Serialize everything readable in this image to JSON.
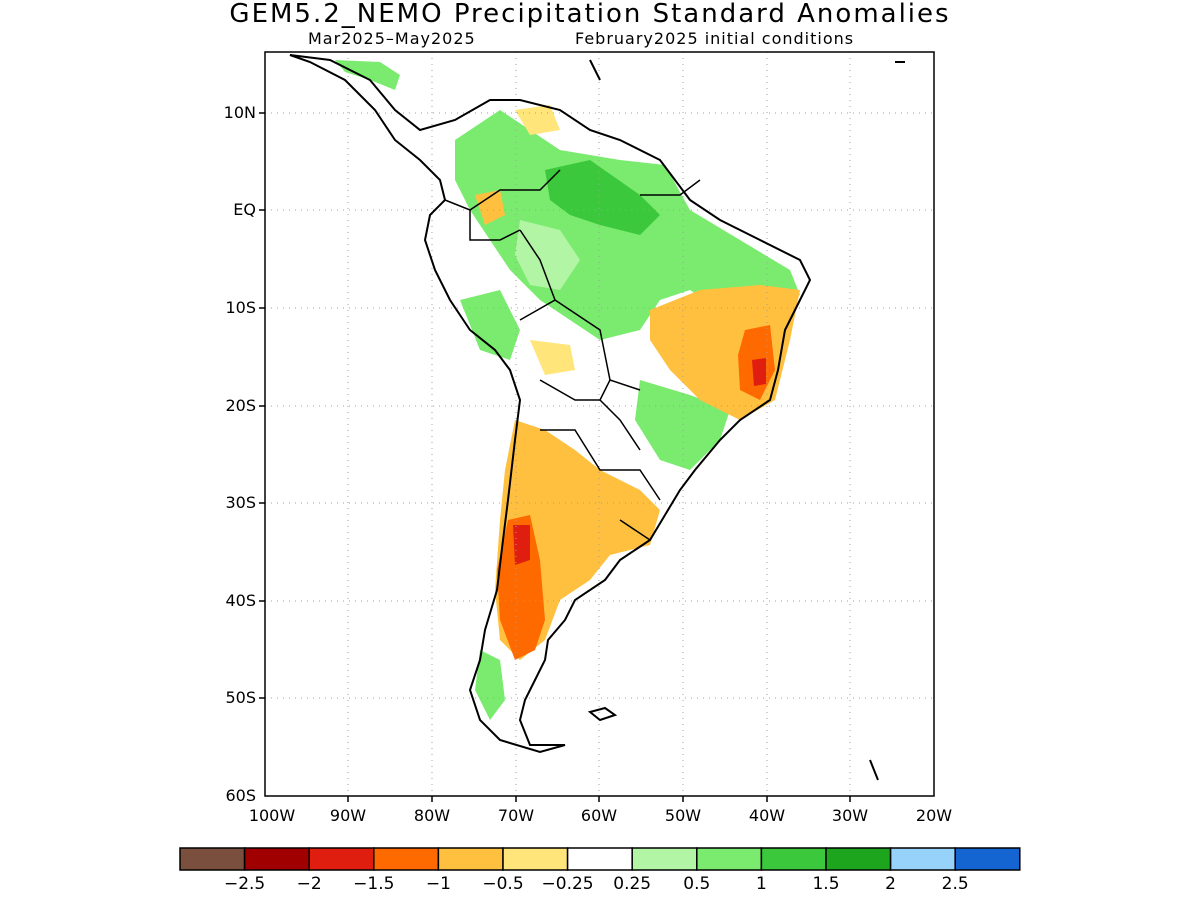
{
  "header": {
    "title": "GEM5.2_NEMO Precipitation Standard Anomalies",
    "period": "Mar2025–May2025",
    "init": "February2025 initial conditions"
  },
  "axes": {
    "lat_labels": [
      "10N",
      "EQ",
      "10S",
      "20S",
      "30S",
      "40S",
      "50S",
      "60S"
    ],
    "lon_labels": [
      "100W",
      "90W",
      "80W",
      "70W",
      "60W",
      "50W",
      "40W",
      "30W",
      "20W"
    ],
    "lon_range": [
      -100,
      -20
    ],
    "lat_range": [
      -60,
      16
    ]
  },
  "colorbar": {
    "colors": [
      "#7a4f3e",
      "#a00000",
      "#e01e0f",
      "#ff6a00",
      "#ffc040",
      "#ffe57a",
      "#ffffff",
      "#b2f5a5",
      "#7aeb6e",
      "#3cc83c",
      "#1ea51e",
      "#96d2fa",
      "#1464d2"
    ],
    "labels": [
      "−2.5",
      "−2",
      "−1.5",
      "−1",
      "−0.5",
      "−0.25",
      "0.25",
      "0.5",
      "1",
      "1.5",
      "2",
      "2.5"
    ]
  },
  "colors": {
    "coast": "#000000",
    "grid": "#a0a0a0",
    "frame": "#000000"
  }
}
